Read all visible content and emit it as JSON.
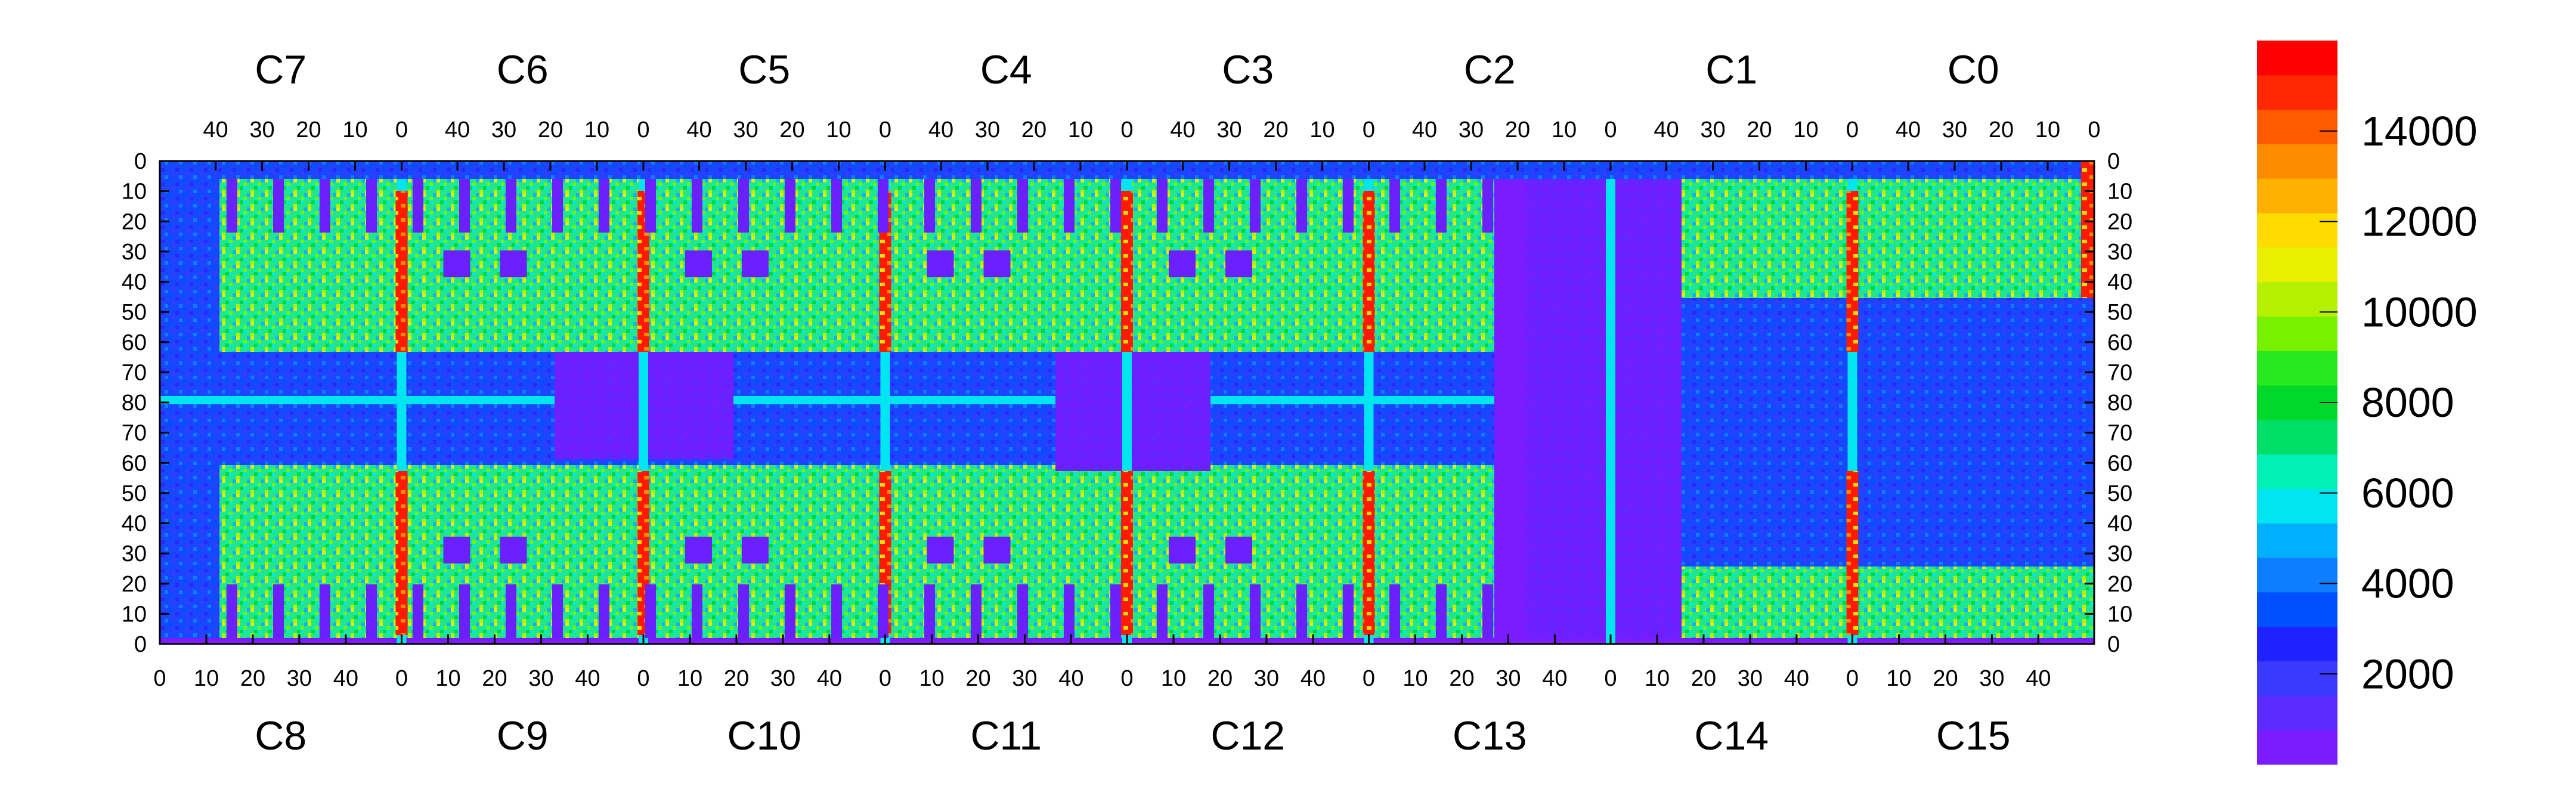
{
  "chart_data": {
    "type": "heatmap",
    "title": "",
    "xlabel": "",
    "ylabel": "",
    "top_chip_labels": [
      "C7",
      "C6",
      "C5",
      "C4",
      "C3",
      "C2",
      "C1",
      "C0"
    ],
    "bottom_chip_labels": [
      "C8",
      "C9",
      "C10",
      "C11",
      "C12",
      "C13",
      "C14",
      "C15"
    ],
    "top_tick_labels": [
      "40",
      "30",
      "20",
      "10",
      "0"
    ],
    "bottom_tick_labels": [
      "0",
      "10",
      "20",
      "30",
      "40"
    ],
    "left_axis_tick_labels": [
      "0",
      "10",
      "20",
      "30",
      "40",
      "50",
      "60",
      "70",
      "80",
      "70",
      "60",
      "50",
      "40",
      "30",
      "20",
      "10",
      "0"
    ],
    "right_axis_tick_labels": [
      "0",
      "10",
      "20",
      "30",
      "40",
      "50",
      "60",
      "70",
      "80",
      "70",
      "60",
      "50",
      "40",
      "30",
      "20",
      "10",
      "0"
    ],
    "colorbar": {
      "min": 0,
      "max": 16000,
      "tick_labels": [
        "2000",
        "4000",
        "6000",
        "8000",
        "10000",
        "12000",
        "14000"
      ],
      "tick_values": [
        2000,
        4000,
        6000,
        8000,
        10000,
        12000,
        14000
      ],
      "colors": [
        "#7a1cff",
        "#5a2cff",
        "#3a3aff",
        "#1f22ff",
        "#0050ff",
        "#0f7dff",
        "#00afff",
        "#00e6f0",
        "#00f0b8",
        "#00e068",
        "#00d82a",
        "#28e81e",
        "#78f000",
        "#b4f000",
        "#e8f000",
        "#ffdc00",
        "#ffb000",
        "#ff8c00",
        "#ff5a00",
        "#ff2800",
        "#ff0000"
      ]
    },
    "regions": [
      {
        "name": "upper-chips-background",
        "level": "green-cyan",
        "value": 7500
      },
      {
        "name": "middle-band",
        "level": "blue",
        "value": 2500
      },
      {
        "name": "center-dead-region",
        "level": "violet",
        "value": 500
      },
      {
        "name": "chip-boundary-columns",
        "level": "red",
        "value": 15000
      },
      {
        "name": "lower-chips-background",
        "level": "green-cyan",
        "value": 7500
      }
    ],
    "colors": {
      "low": "#7a1cff",
      "mid_low": "#1f22ff",
      "mid": "#00e6f0",
      "mid_high": "#00d82a",
      "high": "#e8f000",
      "max": "#ff0000"
    }
  }
}
